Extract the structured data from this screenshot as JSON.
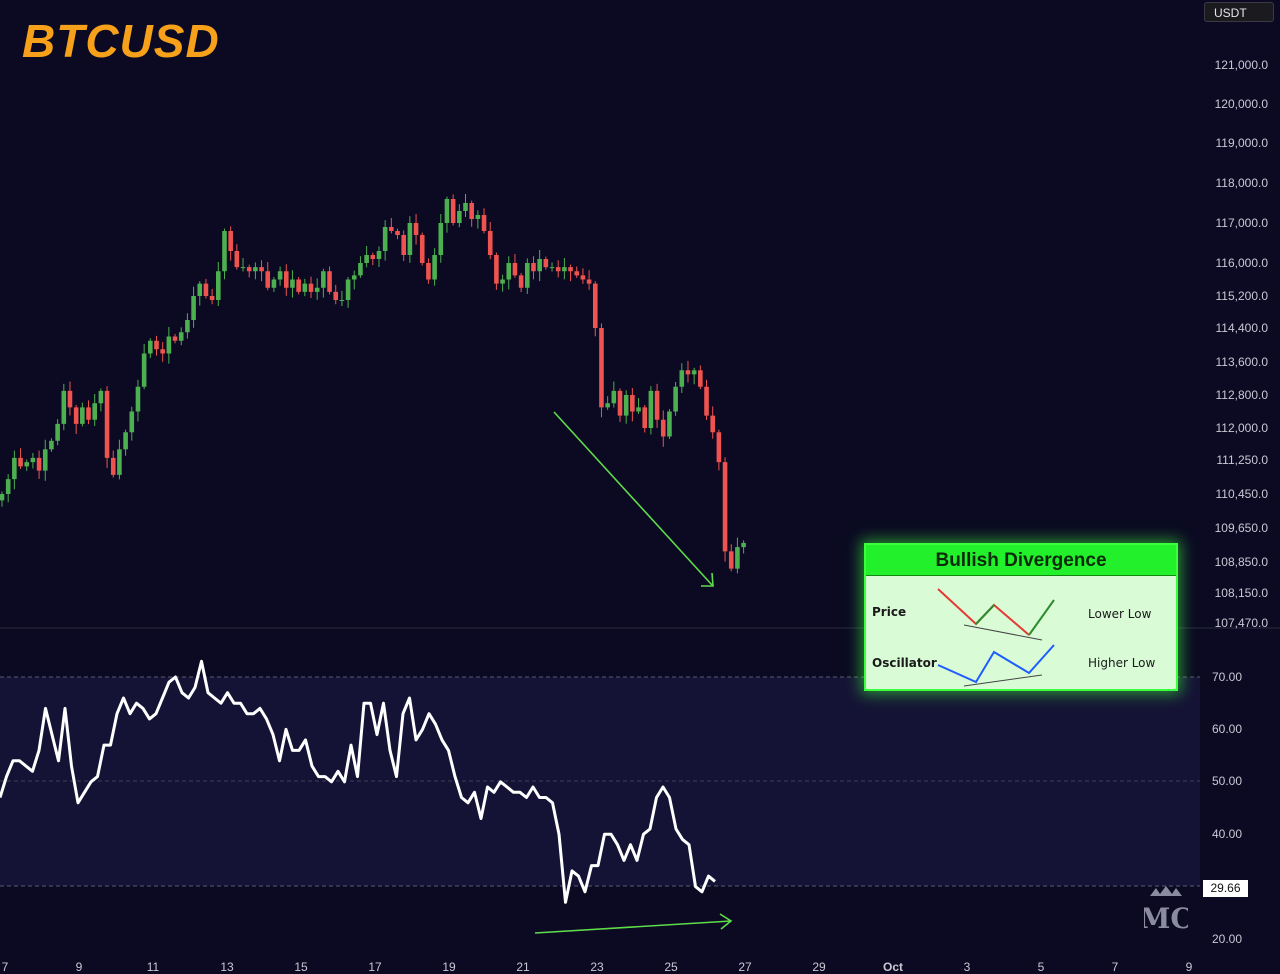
{
  "header": {
    "title": "BTCUSD",
    "unit_label": "USDT"
  },
  "rsi_badge": "29.66",
  "colors": {
    "background": "#0b0a22",
    "rsi_band": "#151335",
    "up_candle": "#4caf50",
    "down_candle": "#ef5350",
    "title": "#f7a11a",
    "divergence_arrow": "#5fdc4a",
    "rsi_line": "#ffffff"
  },
  "legend": {
    "title": "Bullish Divergence",
    "rows": [
      {
        "label": "Price",
        "note": "Lower Low",
        "line_color": "#e53935",
        "line_color_up": "#2e8b2e"
      },
      {
        "label": "Oscillator",
        "note": "Higher Low",
        "line_color": "#1e5cff"
      }
    ]
  },
  "logo": {
    "icon": "mc-crown-logo",
    "text": "MC"
  },
  "chart_data": [
    {
      "type": "candlestick",
      "title": "BTCUSD",
      "unit": "USDT",
      "y_ticks": [
        "121,000.0",
        "120,000.0",
        "119,000.0",
        "118,000.0",
        "117,000.0",
        "116,000.0",
        "115,200.0",
        "114,400.0",
        "113,600.0",
        "112,800.0",
        "112,000.0",
        "111,250.0",
        "110,450.0",
        "109,650.0",
        "108,850.0",
        "108,150.0",
        "107,470.0"
      ],
      "x_ticks": [
        "7",
        "9",
        "11",
        "13",
        "15",
        "17",
        "19",
        "21",
        "23",
        "25",
        "27",
        "29",
        "Oct",
        "3",
        "5",
        "7",
        "9"
      ],
      "ylim": [
        107300,
        122200
      ],
      "close": [
        110450,
        110800,
        111300,
        111100,
        111200,
        111300,
        111000,
        111500,
        111700,
        112100,
        112900,
        112500,
        112100,
        112500,
        112200,
        112600,
        112900,
        111300,
        110900,
        111500,
        111900,
        112400,
        113000,
        113800,
        114100,
        113900,
        113800,
        114200,
        114100,
        114300,
        114600,
        115200,
        115500,
        115200,
        115100,
        115800,
        116800,
        116300,
        115900,
        115900,
        115800,
        115900,
        115800,
        115400,
        115600,
        115800,
        115400,
        115600,
        115300,
        115500,
        115300,
        115400,
        115800,
        115300,
        115100,
        115100,
        115600,
        115700,
        116000,
        116200,
        116100,
        116300,
        116900,
        116800,
        116700,
        116200,
        117000,
        116700,
        116000,
        115600,
        116200,
        117000,
        117600,
        117000,
        117300,
        117500,
        117100,
        117200,
        116800,
        116200,
        115500,
        115600,
        116000,
        115700,
        115400,
        116000,
        115800,
        116100,
        115900,
        115900,
        115800,
        115900,
        115800,
        115700,
        115600,
        115500,
        114400,
        112500,
        112600,
        112900,
        112300,
        112800,
        112400,
        112500,
        112000,
        112900,
        112200,
        111800,
        112400,
        113000,
        113400,
        113300,
        113400,
        113000,
        112300,
        111900,
        111200,
        109100,
        108700,
        109200,
        109300
      ],
      "rsi_ticks": [
        "70.00",
        "60.00",
        "50.00",
        "40.00",
        "20.00"
      ],
      "rsi_ylim": [
        18,
        74
      ],
      "rsi_band": [
        30,
        70
      ],
      "rsi_midline": 50,
      "rsi_last": 29.66,
      "rsi": [
        47,
        51,
        54,
        54,
        53,
        52,
        56,
        64,
        59,
        54,
        64,
        53,
        46,
        48,
        50,
        51,
        57,
        57,
        63,
        66,
        63,
        65,
        64,
        62,
        63,
        66,
        69,
        70,
        67,
        66,
        68,
        73,
        67,
        66,
        65,
        67,
        65,
        65,
        63,
        63,
        64,
        62,
        59,
        54,
        60,
        56,
        56,
        58,
        53,
        51,
        51,
        50,
        52,
        50,
        57,
        51,
        65,
        65,
        59,
        65,
        56,
        51,
        63,
        66,
        58,
        60,
        63,
        61,
        58,
        56,
        51,
        47,
        46,
        48,
        43,
        49,
        48,
        50,
        49,
        48,
        48,
        47,
        49,
        47,
        47,
        46,
        40,
        27,
        33,
        32,
        29,
        34,
        34,
        40,
        40,
        38,
        35,
        38,
        35,
        40,
        41,
        47,
        49,
        47,
        41,
        39,
        38,
        30,
        29,
        32,
        31
      ]
    }
  ]
}
